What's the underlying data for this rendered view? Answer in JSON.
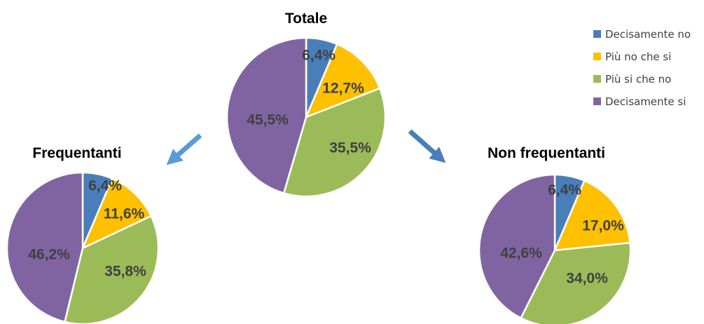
{
  "legend": [
    {
      "label": "Decisamente no",
      "color": "#4a7ebb"
    },
    {
      "label": "Più no che si",
      "color": "#ffc000"
    },
    {
      "label": "Più si che no",
      "color": "#9bbb59"
    },
    {
      "label": "Decisamente si",
      "color": "#8064a2"
    }
  ],
  "chart_data": [
    {
      "type": "pie",
      "title": "Totale",
      "categories": [
        "Decisamente no",
        "Più no che si",
        "Più si che no",
        "Decisamente si"
      ],
      "values": [
        6.4,
        12.7,
        35.5,
        45.5
      ],
      "labels": [
        "6,4%",
        "12,7%",
        "35,5%",
        "45,5%"
      ]
    },
    {
      "type": "pie",
      "title": "Frequentanti",
      "categories": [
        "Decisamente no",
        "Più no che si",
        "Più si che no",
        "Decisamente si"
      ],
      "values": [
        6.4,
        11.6,
        35.8,
        46.2
      ],
      "labels": [
        "6,4%",
        "11,6%",
        "35,8%",
        "46,2%"
      ]
    },
    {
      "type": "pie",
      "title": "Non frequentanti",
      "categories": [
        "Decisamente no",
        "Più no che si",
        "Più si che no",
        "Decisamente si"
      ],
      "values": [
        6.4,
        17.0,
        34.0,
        42.6
      ],
      "labels": [
        "6,4%",
        "17,0%",
        "34,0%",
        "42,6%"
      ]
    }
  ],
  "arrows": [
    {
      "name": "arrow-to-frequentanti-icon",
      "color": "#5b9bd5"
    },
    {
      "name": "arrow-to-non-frequentanti-icon",
      "color": "#4a7ebb"
    }
  ]
}
